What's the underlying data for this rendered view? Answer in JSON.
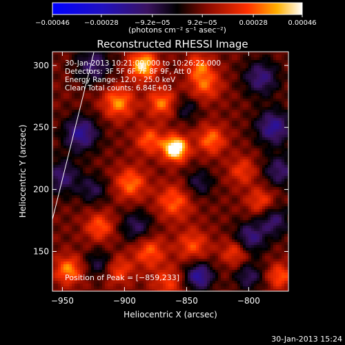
{
  "chart_data": {
    "type": "heatmap",
    "title": "Reconstructed RHESSI Image",
    "xlabel": "Heliocentric X (arcsec)",
    "ylabel": "Heliocentric Y (arcsec)",
    "xlim": [
      -958,
      -768
    ],
    "ylim": [
      118,
      311
    ],
    "x_ticks": [
      -950,
      -900,
      -850,
      -800
    ],
    "x_tick_labels": [
      "−950",
      "−900",
      "−850",
      "−800"
    ],
    "y_ticks": [
      150,
      200,
      250,
      300
    ],
    "y_tick_labels": [
      "150",
      "200",
      "250",
      "300"
    ],
    "colorbar": {
      "range": [
        -0.00046,
        0.00046
      ],
      "tick_values": [
        -0.00046,
        -0.00028,
        -9.2e-05,
        9.2e-05,
        0.00028,
        0.00046
      ],
      "tick_labels": [
        "−0.00046",
        "−0.00028",
        "−9.2e−05",
        "9.2e−05",
        "0.00028",
        "0.00046"
      ],
      "unit_label": "(photons cm⁻² s⁻¹ asec⁻²)"
    },
    "annotations": [
      "30-Jan-2013 10:21:00.000 to 10:26:22.000",
      "Detectors: 3F 5F 6F 7F 8F 9F, Att 0",
      "Energy Range: 12.0 - 25.0 keV",
      "Clean    Total counts: 6.84E+03"
    ],
    "peak_label": "Position of Peak = [−859,233]",
    "peak_position": [
      -859,
      233
    ],
    "sources": [
      {
        "x": -859,
        "y": 233,
        "amp": 1.0,
        "w": 7
      },
      {
        "x": -885,
        "y": 300,
        "amp": 0.75,
        "w": 8
      },
      {
        "x": -905,
        "y": 270,
        "amp": 0.55,
        "w": 9
      },
      {
        "x": -870,
        "y": 270,
        "amp": 0.5,
        "w": 8
      },
      {
        "x": -830,
        "y": 240,
        "amp": 0.5,
        "w": 8
      },
      {
        "x": -835,
        "y": 285,
        "amp": 0.45,
        "w": 9
      },
      {
        "x": -860,
        "y": 190,
        "amp": 0.45,
        "w": 10
      },
      {
        "x": -895,
        "y": 205,
        "amp": 0.5,
        "w": 9
      },
      {
        "x": -920,
        "y": 170,
        "amp": 0.45,
        "w": 8
      },
      {
        "x": -945,
        "y": 135,
        "amp": 0.55,
        "w": 8
      },
      {
        "x": -880,
        "y": 150,
        "amp": 0.45,
        "w": 9
      },
      {
        "x": -845,
        "y": 155,
        "amp": 0.4,
        "w": 9
      },
      {
        "x": -810,
        "y": 150,
        "amp": 0.45,
        "w": 8
      },
      {
        "x": -790,
        "y": 190,
        "amp": 0.4,
        "w": 8
      },
      {
        "x": -805,
        "y": 215,
        "amp": 0.35,
        "w": 8
      },
      {
        "x": -905,
        "y": 135,
        "amp": 0.4,
        "w": 8
      },
      {
        "x": -775,
        "y": 130,
        "amp": 0.45,
        "w": 7
      },
      {
        "x": -865,
        "y": 125,
        "amp": 0.35,
        "w": 9
      },
      {
        "x": -880,
        "y": 240,
        "amp": 0.45,
        "w": 8
      },
      {
        "x": -840,
        "y": 300,
        "amp": 0.4,
        "w": 7
      },
      {
        "x": -935,
        "y": 245,
        "amp": -0.6,
        "w": 10
      },
      {
        "x": -950,
        "y": 210,
        "amp": -0.45,
        "w": 10
      },
      {
        "x": -925,
        "y": 300,
        "amp": -0.45,
        "w": 10
      },
      {
        "x": -780,
        "y": 250,
        "amp": -0.6,
        "w": 10
      },
      {
        "x": -790,
        "y": 290,
        "amp": -0.5,
        "w": 10
      },
      {
        "x": -775,
        "y": 215,
        "amp": -0.45,
        "w": 9
      },
      {
        "x": -840,
        "y": 130,
        "amp": -0.65,
        "w": 8
      },
      {
        "x": -800,
        "y": 160,
        "amp": -0.55,
        "w": 9
      },
      {
        "x": -780,
        "y": 175,
        "amp": -0.45,
        "w": 9
      },
      {
        "x": -890,
        "y": 170,
        "amp": -0.4,
        "w": 9
      },
      {
        "x": -925,
        "y": 200,
        "amp": -0.35,
        "w": 8
      },
      {
        "x": -840,
        "y": 205,
        "amp": -0.35,
        "w": 8
      },
      {
        "x": -850,
        "y": 265,
        "amp": -0.3,
        "w": 7
      },
      {
        "x": -800,
        "y": 130,
        "amp": -0.4,
        "w": 8
      },
      {
        "x": -920,
        "y": 140,
        "amp": -0.35,
        "w": 8
      }
    ]
  },
  "footer_timestamp": "30-Jan-2013 15:24"
}
